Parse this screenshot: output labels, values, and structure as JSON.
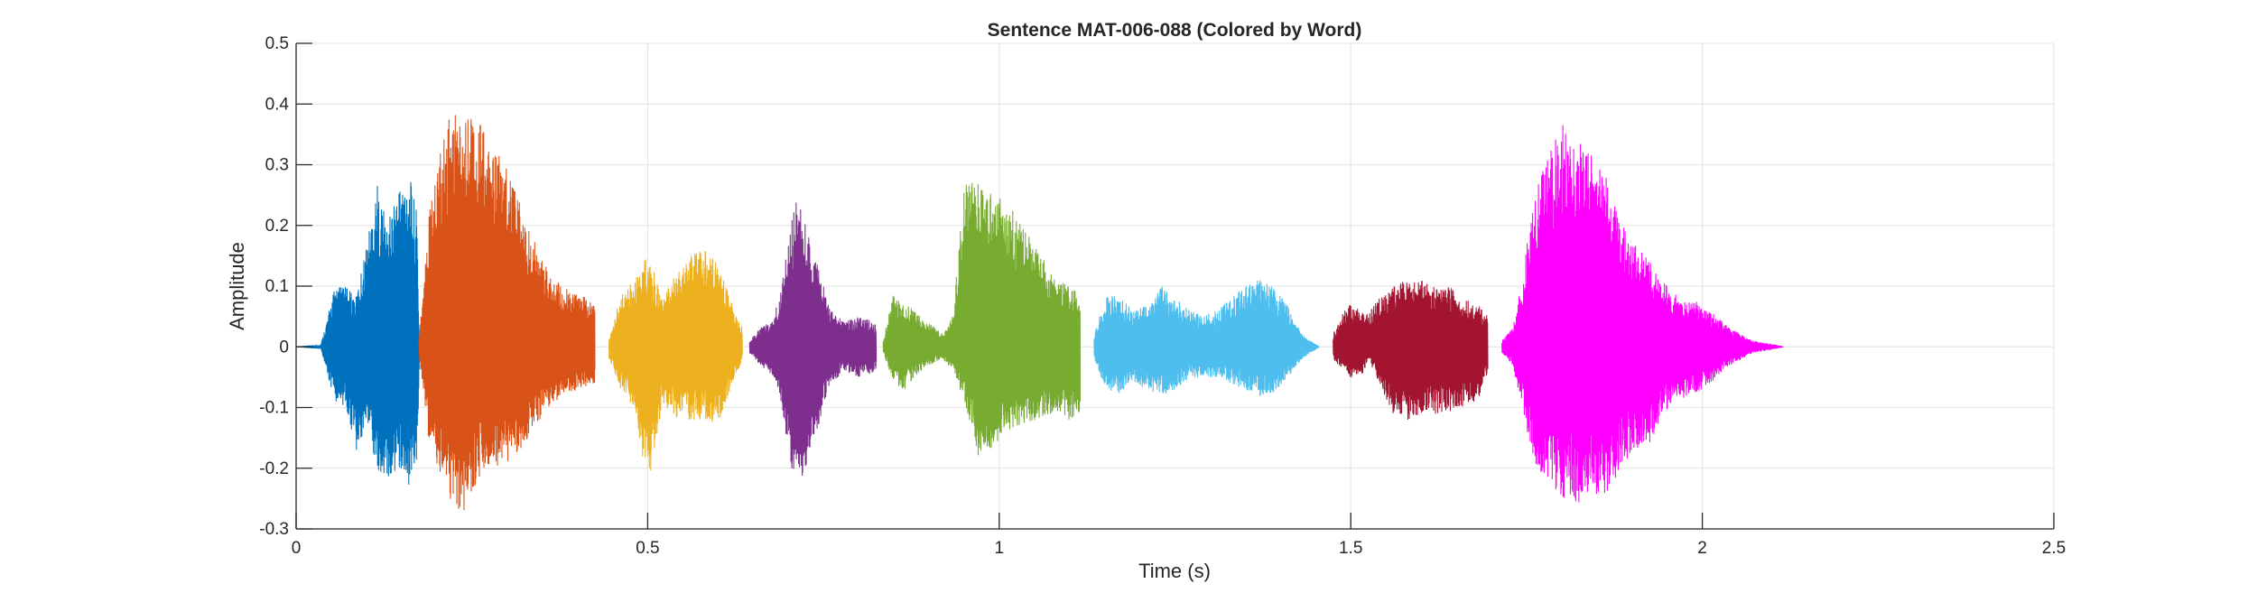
{
  "chart_data": {
    "type": "line",
    "title": "Sentence MAT-006-088 (Colored by Word)",
    "xlabel": "Time (s)",
    "ylabel": "Amplitude",
    "xlim": [
      0,
      2.5
    ],
    "ylim": [
      -0.3,
      0.5
    ],
    "xticks": [
      0,
      0.5,
      1,
      1.5,
      2,
      2.5
    ],
    "xtick_labels": [
      "0",
      "0.5",
      "1",
      "1.5",
      "2",
      "2.5"
    ],
    "yticks": [
      -0.3,
      -0.2,
      -0.1,
      0,
      0.1,
      0.2,
      0.3,
      0.4,
      0.5
    ],
    "ytick_labels": [
      "-0.3",
      "-0.2",
      "-0.1",
      "0",
      "0.1",
      "0.2",
      "0.3",
      "0.4",
      "0.5"
    ],
    "grid": true,
    "series": [
      {
        "color": "#0072BD",
        "start": 0.0,
        "end": 0.175,
        "envelope": [
          [
            0.0,
            0.0,
            0.0
          ],
          [
            0.035,
            0.003,
            -0.003
          ],
          [
            0.045,
            0.05,
            -0.05
          ],
          [
            0.055,
            0.1,
            -0.09
          ],
          [
            0.07,
            0.1,
            -0.1
          ],
          [
            0.085,
            0.08,
            -0.17
          ],
          [
            0.1,
            0.17,
            -0.13
          ],
          [
            0.115,
            0.27,
            -0.2
          ],
          [
            0.13,
            0.2,
            -0.22
          ],
          [
            0.145,
            0.27,
            -0.2
          ],
          [
            0.16,
            0.29,
            -0.23
          ],
          [
            0.172,
            0.22,
            -0.18
          ],
          [
            0.175,
            0.02,
            -0.02
          ]
        ]
      },
      {
        "color": "#D95319",
        "start": 0.175,
        "end": 0.425,
        "envelope": [
          [
            0.175,
            0.02,
            -0.02
          ],
          [
            0.19,
            0.23,
            -0.17
          ],
          [
            0.205,
            0.33,
            -0.22
          ],
          [
            0.22,
            0.4,
            -0.27
          ],
          [
            0.24,
            0.39,
            -0.28
          ],
          [
            0.26,
            0.37,
            -0.22
          ],
          [
            0.28,
            0.34,
            -0.2
          ],
          [
            0.3,
            0.3,
            -0.19
          ],
          [
            0.32,
            0.23,
            -0.17
          ],
          [
            0.34,
            0.17,
            -0.13
          ],
          [
            0.36,
            0.12,
            -0.1
          ],
          [
            0.38,
            0.1,
            -0.08
          ],
          [
            0.4,
            0.09,
            -0.07
          ],
          [
            0.425,
            0.07,
            -0.06
          ]
        ]
      },
      {
        "color": "#EDB120",
        "start": 0.445,
        "end": 0.635,
        "envelope": [
          [
            0.445,
            0.01,
            -0.02
          ],
          [
            0.46,
            0.08,
            -0.07
          ],
          [
            0.48,
            0.11,
            -0.1
          ],
          [
            0.5,
            0.16,
            -0.23
          ],
          [
            0.52,
            0.08,
            -0.1
          ],
          [
            0.54,
            0.12,
            -0.12
          ],
          [
            0.56,
            0.15,
            -0.12
          ],
          [
            0.58,
            0.16,
            -0.12
          ],
          [
            0.6,
            0.14,
            -0.13
          ],
          [
            0.62,
            0.07,
            -0.06
          ],
          [
            0.635,
            0.03,
            -0.02
          ]
        ]
      },
      {
        "color": "#7E2F8E",
        "start": 0.645,
        "end": 0.825,
        "envelope": [
          [
            0.645,
            0.01,
            -0.01
          ],
          [
            0.66,
            0.03,
            -0.03
          ],
          [
            0.68,
            0.05,
            -0.05
          ],
          [
            0.69,
            0.1,
            -0.1
          ],
          [
            0.7,
            0.17,
            -0.17
          ],
          [
            0.71,
            0.25,
            -0.24
          ],
          [
            0.72,
            0.22,
            -0.22
          ],
          [
            0.74,
            0.14,
            -0.14
          ],
          [
            0.76,
            0.06,
            -0.06
          ],
          [
            0.78,
            0.04,
            -0.04
          ],
          [
            0.8,
            0.05,
            -0.05
          ],
          [
            0.825,
            0.04,
            -0.04
          ]
        ]
      },
      {
        "color": "#77AC30",
        "start": 0.835,
        "end": 1.115,
        "envelope": [
          [
            0.835,
            0.01,
            -0.01
          ],
          [
            0.85,
            0.09,
            -0.06
          ],
          [
            0.865,
            0.07,
            -0.07
          ],
          [
            0.88,
            0.06,
            -0.05
          ],
          [
            0.9,
            0.04,
            -0.03
          ],
          [
            0.92,
            0.02,
            -0.02
          ],
          [
            0.935,
            0.06,
            -0.04
          ],
          [
            0.95,
            0.27,
            -0.09
          ],
          [
            0.97,
            0.27,
            -0.18
          ],
          [
            0.99,
            0.26,
            -0.17
          ],
          [
            1.01,
            0.24,
            -0.14
          ],
          [
            1.03,
            0.21,
            -0.13
          ],
          [
            1.05,
            0.17,
            -0.12
          ],
          [
            1.08,
            0.11,
            -0.11
          ],
          [
            1.1,
            0.1,
            -0.12
          ],
          [
            1.115,
            0.09,
            -0.11
          ]
        ]
      },
      {
        "color": "#4DBEEE",
        "start": 1.135,
        "end": 1.455,
        "envelope": [
          [
            1.135,
            0.02,
            -0.02
          ],
          [
            1.15,
            0.08,
            -0.07
          ],
          [
            1.17,
            0.09,
            -0.08
          ],
          [
            1.19,
            0.06,
            -0.06
          ],
          [
            1.21,
            0.07,
            -0.07
          ],
          [
            1.23,
            0.1,
            -0.08
          ],
          [
            1.25,
            0.08,
            -0.07
          ],
          [
            1.27,
            0.06,
            -0.05
          ],
          [
            1.29,
            0.05,
            -0.05
          ],
          [
            1.31,
            0.06,
            -0.05
          ],
          [
            1.33,
            0.08,
            -0.06
          ],
          [
            1.35,
            0.1,
            -0.07
          ],
          [
            1.37,
            0.11,
            -0.08
          ],
          [
            1.39,
            0.1,
            -0.08
          ],
          [
            1.41,
            0.07,
            -0.05
          ],
          [
            1.43,
            0.02,
            -0.02
          ],
          [
            1.455,
            0.0,
            0.0
          ]
        ]
      },
      {
        "color": "#A2142F",
        "start": 1.475,
        "end": 1.695,
        "envelope": [
          [
            1.475,
            0.02,
            -0.02
          ],
          [
            1.49,
            0.06,
            -0.04
          ],
          [
            1.5,
            0.07,
            -0.05
          ],
          [
            1.515,
            0.06,
            -0.05
          ],
          [
            1.525,
            0.06,
            -0.02
          ],
          [
            1.54,
            0.08,
            -0.06
          ],
          [
            1.56,
            0.1,
            -0.11
          ],
          [
            1.58,
            0.11,
            -0.12
          ],
          [
            1.6,
            0.11,
            -0.11
          ],
          [
            1.62,
            0.1,
            -0.11
          ],
          [
            1.64,
            0.1,
            -0.11
          ],
          [
            1.66,
            0.08,
            -0.1
          ],
          [
            1.68,
            0.07,
            -0.09
          ],
          [
            1.695,
            0.05,
            -0.04
          ]
        ]
      },
      {
        "color": "#FF00FF",
        "start": 1.715,
        "end": 2.115,
        "envelope": [
          [
            1.715,
            0.01,
            -0.01
          ],
          [
            1.73,
            0.03,
            -0.03
          ],
          [
            1.745,
            0.12,
            -0.11
          ],
          [
            1.76,
            0.25,
            -0.19
          ],
          [
            1.78,
            0.31,
            -0.22
          ],
          [
            1.8,
            0.37,
            -0.25
          ],
          [
            1.82,
            0.35,
            -0.26
          ],
          [
            1.84,
            0.32,
            -0.24
          ],
          [
            1.86,
            0.29,
            -0.25
          ],
          [
            1.88,
            0.22,
            -0.21
          ],
          [
            1.9,
            0.18,
            -0.17
          ],
          [
            1.92,
            0.15,
            -0.17
          ],
          [
            1.94,
            0.11,
            -0.12
          ],
          [
            1.96,
            0.09,
            -0.09
          ],
          [
            1.98,
            0.08,
            -0.08
          ],
          [
            2.0,
            0.07,
            -0.07
          ],
          [
            2.02,
            0.05,
            -0.05
          ],
          [
            2.04,
            0.03,
            -0.03
          ],
          [
            2.07,
            0.01,
            -0.01
          ],
          [
            2.1,
            0.004,
            -0.004
          ],
          [
            2.115,
            0.0,
            0.0
          ]
        ]
      }
    ]
  }
}
